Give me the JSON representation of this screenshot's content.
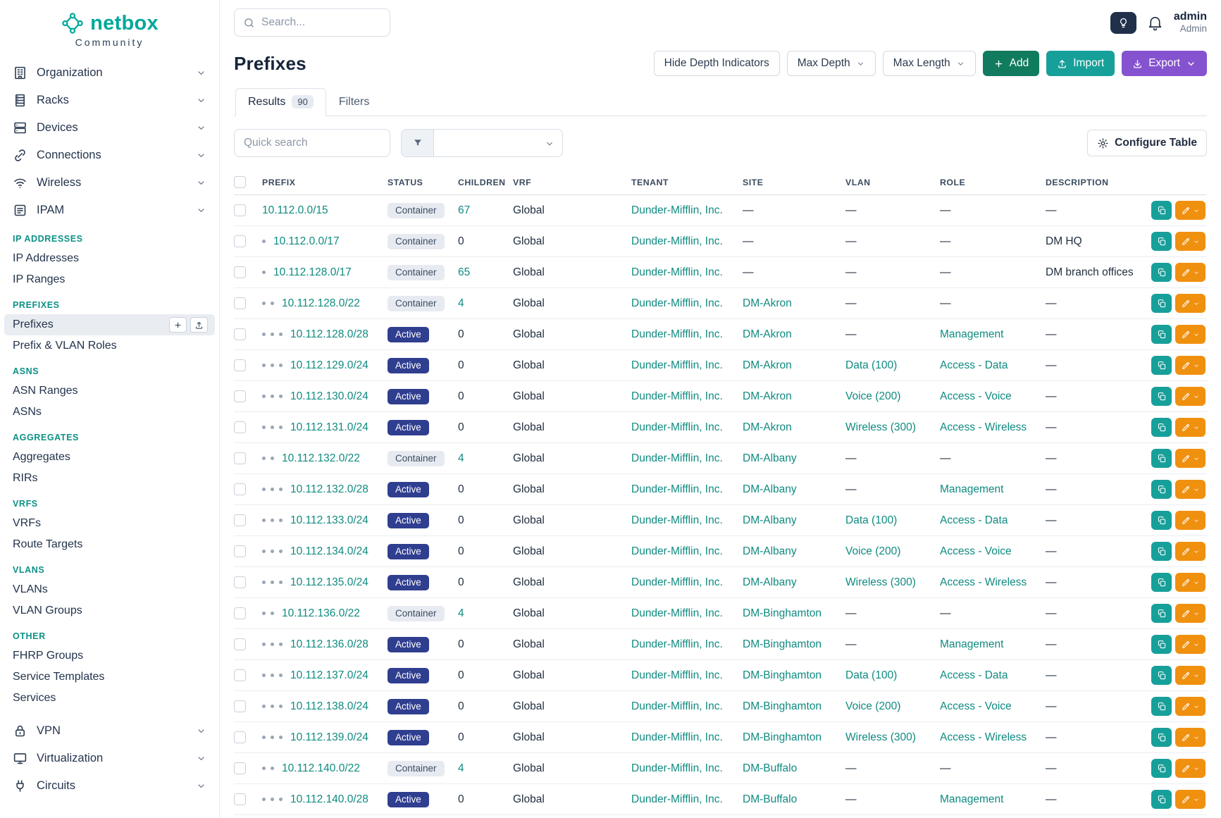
{
  "brand": {
    "name": "netbox",
    "subtitle": "Community"
  },
  "accent_colors": {
    "brand_teal": "#00a89b",
    "link_teal": "#0f8b80",
    "section_label_teal": "#0c9186",
    "status_active_badge": "#2f3e8f",
    "status_container_badge_bg": "#e7ebf1",
    "add_button_green": "#107b5e",
    "import_button_teal": "#17a09a",
    "export_button_purple": "#8553cf",
    "edit_button_orange": "#f0900f"
  },
  "topbar": {
    "search_placeholder": "Search...",
    "user_name": "admin",
    "user_role": "Admin"
  },
  "sidebar": {
    "top_items": [
      {
        "label": "Organization",
        "icon": "building-icon"
      },
      {
        "label": "Racks",
        "icon": "rack-icon"
      },
      {
        "label": "Devices",
        "icon": "devices-icon"
      },
      {
        "label": "Connections",
        "icon": "connections-icon"
      },
      {
        "label": "Wireless",
        "icon": "wireless-icon"
      },
      {
        "label": "IPAM",
        "icon": "ipam-icon"
      }
    ],
    "sections": [
      {
        "label": "IP ADDRESSES",
        "items": [
          {
            "label": "IP Addresses"
          },
          {
            "label": "IP Ranges"
          }
        ]
      },
      {
        "label": "PREFIXES",
        "items": [
          {
            "label": "Prefixes",
            "active": true,
            "quick_actions": [
              {
                "name": "add-prefix",
                "icon": "plus-icon"
              },
              {
                "name": "import-prefixes",
                "icon": "upload-icon"
              }
            ]
          },
          {
            "label": "Prefix & VLAN Roles"
          }
        ]
      },
      {
        "label": "ASNS",
        "items": [
          {
            "label": "ASN Ranges"
          },
          {
            "label": "ASNs"
          }
        ]
      },
      {
        "label": "AGGREGATES",
        "items": [
          {
            "label": "Aggregates"
          },
          {
            "label": "RIRs"
          }
        ]
      },
      {
        "label": "VRFS",
        "items": [
          {
            "label": "VRFs"
          },
          {
            "label": "Route Targets"
          }
        ]
      },
      {
        "label": "VLANS",
        "items": [
          {
            "label": "VLANs"
          },
          {
            "label": "VLAN Groups"
          }
        ]
      },
      {
        "label": "OTHER",
        "items": [
          {
            "label": "FHRP Groups"
          },
          {
            "label": "Service Templates"
          },
          {
            "label": "Services"
          }
        ]
      }
    ],
    "bottom_items": [
      {
        "label": "VPN",
        "icon": "vpn-icon"
      },
      {
        "label": "Virtualization",
        "icon": "virtualization-icon"
      },
      {
        "label": "Circuits",
        "icon": "circuits-icon"
      }
    ]
  },
  "page": {
    "title": "Prefixes",
    "toolbar": {
      "hide_depth": "Hide Depth Indicators",
      "max_depth": "Max Depth",
      "max_length": "Max Length",
      "add": "Add",
      "import": "Import",
      "export": "Export"
    }
  },
  "tabs": [
    {
      "label": "Results",
      "badge": "90",
      "active": true
    },
    {
      "label": "Filters"
    }
  ],
  "controls": {
    "quick_search_placeholder": "Quick search",
    "configure_table": "Configure Table"
  },
  "table": {
    "columns": [
      "",
      "PREFIX",
      "STATUS",
      "CHILDREN",
      "VRF",
      "TENANT",
      "SITE",
      "VLAN",
      "ROLE",
      "DESCRIPTION",
      ""
    ],
    "rows": [
      {
        "depth": 0,
        "prefix": "10.112.0.0/15",
        "status": "Container",
        "children": "67",
        "vrf": "Global",
        "tenant": "Dunder-Mifflin, Inc.",
        "site": "—",
        "vlan": "—",
        "role": "—",
        "description": "—"
      },
      {
        "depth": 1,
        "prefix": "10.112.0.0/17",
        "status": "Container",
        "children": "0",
        "vrf": "Global",
        "tenant": "Dunder-Mifflin, Inc.",
        "site": "—",
        "vlan": "—",
        "role": "—",
        "description": "DM HQ"
      },
      {
        "depth": 1,
        "prefix": "10.112.128.0/17",
        "status": "Container",
        "children": "65",
        "vrf": "Global",
        "tenant": "Dunder-Mifflin, Inc.",
        "site": "—",
        "vlan": "—",
        "role": "—",
        "description": "DM branch offices"
      },
      {
        "depth": 2,
        "prefix": "10.112.128.0/22",
        "status": "Container",
        "children": "4",
        "vrf": "Global",
        "tenant": "Dunder-Mifflin, Inc.",
        "site": "DM-Akron",
        "vlan": "—",
        "role": "—",
        "description": "—"
      },
      {
        "depth": 3,
        "prefix": "10.112.128.0/28",
        "status": "Active",
        "children": "0",
        "vrf": "Global",
        "tenant": "Dunder-Mifflin, Inc.",
        "site": "DM-Akron",
        "vlan": "—",
        "role": "Management",
        "description": "—"
      },
      {
        "depth": 3,
        "prefix": "10.112.129.0/24",
        "status": "Active",
        "children": "0",
        "vrf": "Global",
        "tenant": "Dunder-Mifflin, Inc.",
        "site": "DM-Akron",
        "vlan": "Data (100)",
        "role": "Access - Data",
        "description": "—"
      },
      {
        "depth": 3,
        "prefix": "10.112.130.0/24",
        "status": "Active",
        "children": "0",
        "vrf": "Global",
        "tenant": "Dunder-Mifflin, Inc.",
        "site": "DM-Akron",
        "vlan": "Voice (200)",
        "role": "Access - Voice",
        "description": "—"
      },
      {
        "depth": 3,
        "prefix": "10.112.131.0/24",
        "status": "Active",
        "children": "0",
        "vrf": "Global",
        "tenant": "Dunder-Mifflin, Inc.",
        "site": "DM-Akron",
        "vlan": "Wireless (300)",
        "role": "Access - Wireless",
        "description": "—"
      },
      {
        "depth": 2,
        "prefix": "10.112.132.0/22",
        "status": "Container",
        "children": "4",
        "vrf": "Global",
        "tenant": "Dunder-Mifflin, Inc.",
        "site": "DM-Albany",
        "vlan": "—",
        "role": "—",
        "description": "—"
      },
      {
        "depth": 3,
        "prefix": "10.112.132.0/28",
        "status": "Active",
        "children": "0",
        "vrf": "Global",
        "tenant": "Dunder-Mifflin, Inc.",
        "site": "DM-Albany",
        "vlan": "—",
        "role": "Management",
        "description": "—"
      },
      {
        "depth": 3,
        "prefix": "10.112.133.0/24",
        "status": "Active",
        "children": "0",
        "vrf": "Global",
        "tenant": "Dunder-Mifflin, Inc.",
        "site": "DM-Albany",
        "vlan": "Data (100)",
        "role": "Access - Data",
        "description": "—"
      },
      {
        "depth": 3,
        "prefix": "10.112.134.0/24",
        "status": "Active",
        "children": "0",
        "vrf": "Global",
        "tenant": "Dunder-Mifflin, Inc.",
        "site": "DM-Albany",
        "vlan": "Voice (200)",
        "role": "Access - Voice",
        "description": "—"
      },
      {
        "depth": 3,
        "prefix": "10.112.135.0/24",
        "status": "Active",
        "children": "0",
        "vrf": "Global",
        "tenant": "Dunder-Mifflin, Inc.",
        "site": "DM-Albany",
        "vlan": "Wireless (300)",
        "role": "Access - Wireless",
        "description": "—"
      },
      {
        "depth": 2,
        "prefix": "10.112.136.0/22",
        "status": "Container",
        "children": "4",
        "vrf": "Global",
        "tenant": "Dunder-Mifflin, Inc.",
        "site": "DM-Binghamton",
        "vlan": "—",
        "role": "—",
        "description": "—"
      },
      {
        "depth": 3,
        "prefix": "10.112.136.0/28",
        "status": "Active",
        "children": "0",
        "vrf": "Global",
        "tenant": "Dunder-Mifflin, Inc.",
        "site": "DM-Binghamton",
        "vlan": "—",
        "role": "Management",
        "description": "—"
      },
      {
        "depth": 3,
        "prefix": "10.112.137.0/24",
        "status": "Active",
        "children": "0",
        "vrf": "Global",
        "tenant": "Dunder-Mifflin, Inc.",
        "site": "DM-Binghamton",
        "vlan": "Data (100)",
        "role": "Access - Data",
        "description": "—"
      },
      {
        "depth": 3,
        "prefix": "10.112.138.0/24",
        "status": "Active",
        "children": "0",
        "vrf": "Global",
        "tenant": "Dunder-Mifflin, Inc.",
        "site": "DM-Binghamton",
        "vlan": "Voice (200)",
        "role": "Access - Voice",
        "description": "—"
      },
      {
        "depth": 3,
        "prefix": "10.112.139.0/24",
        "status": "Active",
        "children": "0",
        "vrf": "Global",
        "tenant": "Dunder-Mifflin, Inc.",
        "site": "DM-Binghamton",
        "vlan": "Wireless (300)",
        "role": "Access - Wireless",
        "description": "—"
      },
      {
        "depth": 2,
        "prefix": "10.112.140.0/22",
        "status": "Container",
        "children": "4",
        "vrf": "Global",
        "tenant": "Dunder-Mifflin, Inc.",
        "site": "DM-Buffalo",
        "vlan": "—",
        "role": "—",
        "description": "—"
      },
      {
        "depth": 3,
        "prefix": "10.112.140.0/28",
        "status": "Active",
        "children": "0",
        "vrf": "Global",
        "tenant": "Dunder-Mifflin, Inc.",
        "site": "DM-Buffalo",
        "vlan": "—",
        "role": "Management",
        "description": "—"
      }
    ]
  }
}
